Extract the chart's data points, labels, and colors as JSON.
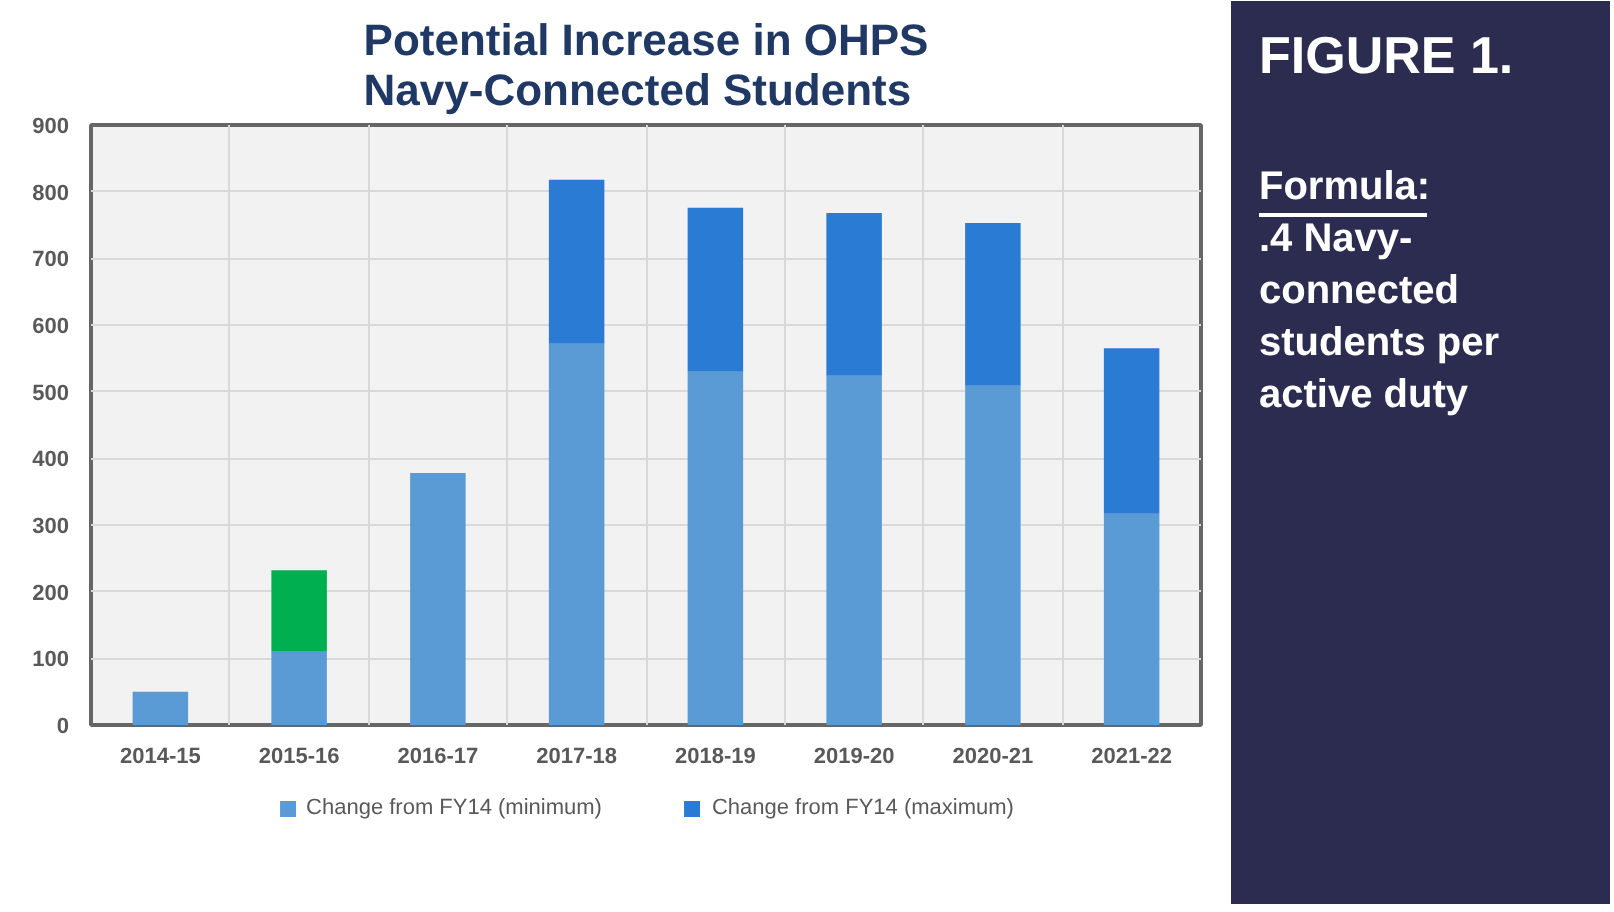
{
  "chart_data": {
    "type": "bar",
    "title": "Potential Increase in OHPS\nNavy-Connected Students",
    "categories": [
      "2014-15",
      "2015-16",
      "2016-17",
      "2017-18",
      "2018-19",
      "2019-20",
      "2020-21",
      "2021-22"
    ],
    "stacked": true,
    "series": [
      {
        "name": "Change from FY14 (minimum)",
        "color": "#5b9bd5",
        "values": [
          50,
          110,
          378,
          572,
          530,
          524,
          509,
          317
        ]
      },
      {
        "name": "Change from FY14 (maximum)",
        "color": "#2a7bd4",
        "colors": [
          "#2a7bd4",
          "#00b050",
          "#2a7bd4",
          "#2a7bd4",
          "#2a7bd4",
          "#2a7bd4",
          "#2a7bd4",
          "#2a7bd4"
        ],
        "values": [
          null,
          122,
          null,
          246,
          246,
          244,
          244,
          248
        ]
      }
    ],
    "ylim": [
      0,
      900
    ],
    "yticks": [
      0,
      100,
      200,
      300,
      400,
      500,
      600,
      700,
      800,
      900
    ],
    "grid": true,
    "legend": "bottom",
    "annotations": [
      "FIGURE 1.",
      "Formula:",
      ".4 Navy-connected students per active duty"
    ]
  }
}
